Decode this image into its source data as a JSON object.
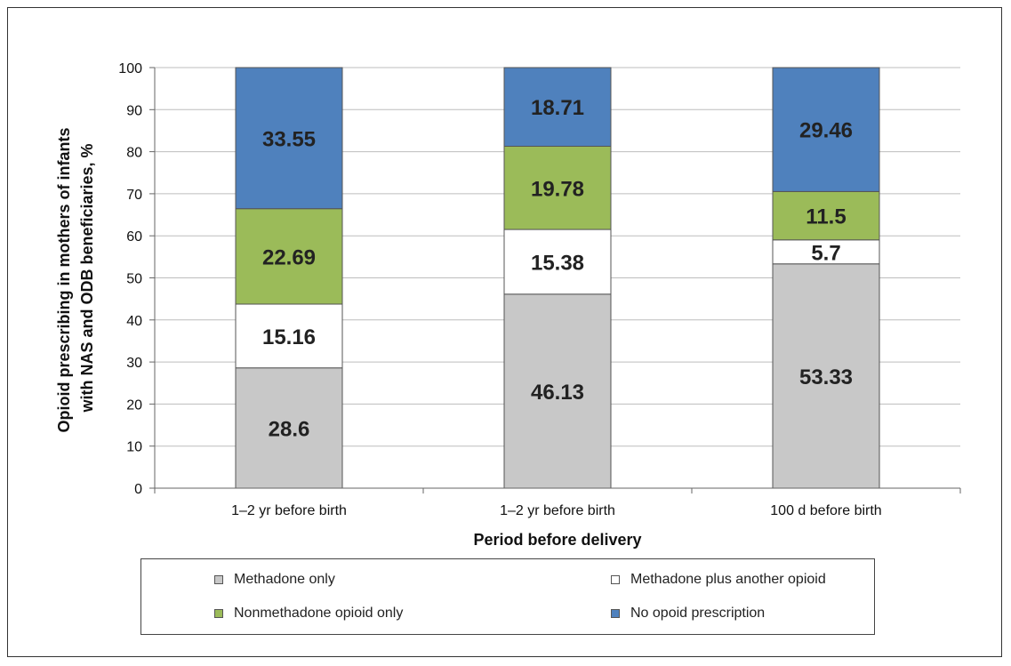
{
  "chart_data": {
    "type": "bar",
    "stacked": true,
    "categories": [
      "1–2 yr before birth",
      "1–2 yr before birth",
      "100 d before birth"
    ],
    "series": [
      {
        "name": "Methadone only",
        "values": [
          28.6,
          46.13,
          53.33
        ],
        "color": "#c8c8c8"
      },
      {
        "name": "Methadone plus another opioid",
        "values": [
          15.16,
          15.38,
          5.7
        ],
        "color": "#ffffff"
      },
      {
        "name": "Nonmethadone opioid only",
        "values": [
          22.69,
          19.78,
          11.5
        ],
        "color": "#9bbb59"
      },
      {
        "name": "No opoid prescription",
        "values": [
          33.55,
          18.71,
          29.46
        ],
        "color": "#4f81bd"
      }
    ],
    "xlabel": "Period before delivery",
    "ylabel_line1": "Opioid prescribing in mothers of infants",
    "ylabel_line2": "with NAS and ODB beneficiaries, %",
    "ylim": [
      0,
      100
    ],
    "yticks": [
      0,
      10,
      20,
      30,
      40,
      50,
      60,
      70,
      80,
      90,
      100
    ],
    "grid": true,
    "legend_position": "bottom"
  }
}
